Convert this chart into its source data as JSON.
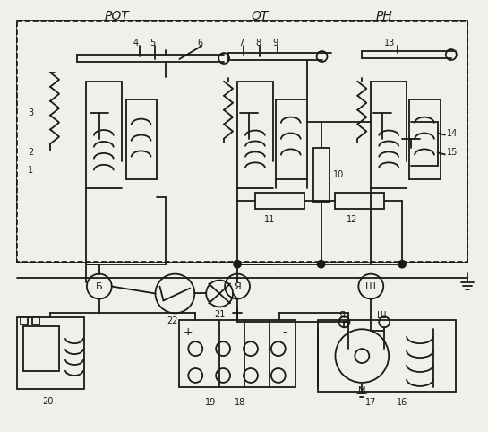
{
  "bg_color": "#f0f0eb",
  "line_color": "#1a1a1a",
  "fig_width": 5.45,
  "fig_height": 4.82,
  "dpi": 100,
  "title_rot": "РОТ",
  "title_ot": "ОТ",
  "title_rn": "РН"
}
